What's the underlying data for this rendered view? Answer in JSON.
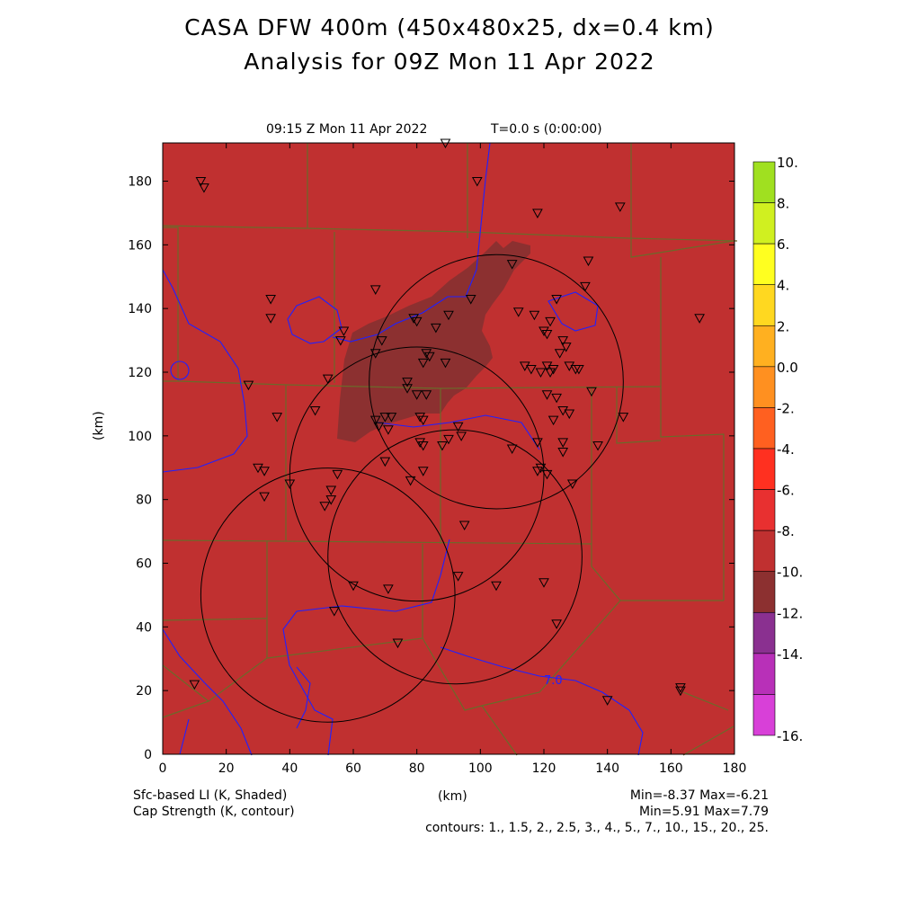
{
  "header": {
    "title_line1": "CASA DFW 400m (450x480x25, dx=0.4 km)",
    "title_line2": "Analysis for 09Z Mon 11 Apr 2022",
    "valid_time": "09:15 Z Mon 11 Apr 2022",
    "model_time": "T=0.0 s (0:00:00)"
  },
  "axes": {
    "x_ticks": [
      "0",
      "20",
      "40",
      "60",
      "80",
      "100",
      "120",
      "140",
      "160",
      "180"
    ],
    "y_ticks": [
      "0",
      "20",
      "40",
      "60",
      "80",
      "100",
      "120",
      "140",
      "160",
      "180"
    ],
    "x_unit": "(km)",
    "y_unit": "(km)"
  },
  "colorbar": {
    "labels": [
      "10.",
      "8.",
      "6.",
      "4.",
      "2.",
      "0.0",
      "-2.",
      "-4.",
      "-6.",
      "-8.",
      "-10.",
      "-12.",
      "-14.",
      "-16."
    ],
    "colors": [
      "#a0e020",
      "#d0f020",
      "#ffff20",
      "#ffd820",
      "#ffb020",
      "#ff9020",
      "#ff6020",
      "#ff3020",
      "#e83030",
      "#c03030",
      "#8c3030",
      "#8a3090",
      "#b830b8",
      "#d840d8"
    ]
  },
  "field": {
    "base_color": "#c03030",
    "low_region_color": "#8c3030",
    "contour_label": "7.0"
  },
  "footer": {
    "shaded_field": "Sfc-based LI (K, Shaded)",
    "contour_field": "Cap Strength (K, contour)",
    "shaded_range": "Min=-8.37 Max=-6.21",
    "contour_range": "Min=5.91 Max=7.79",
    "contours": "contours: 1., 1.5, 2., 2.5, 3., 4., 5., 7., 10., 15., 20., 25."
  },
  "radars": [
    {
      "cx_km": 52,
      "cy_km": 50,
      "r_km": 40
    },
    {
      "cx_km": 80,
      "cy_km": 88,
      "r_km": 40
    },
    {
      "cx_km": 92,
      "cy_km": 62,
      "r_km": 40
    },
    {
      "cx_km": 105,
      "cy_km": 117,
      "r_km": 40
    }
  ],
  "stations_km": [
    [
      12,
      180
    ],
    [
      13,
      178
    ],
    [
      89,
      192
    ],
    [
      99,
      180
    ],
    [
      118,
      170
    ],
    [
      144,
      172
    ],
    [
      134,
      155
    ],
    [
      110,
      154
    ],
    [
      67,
      146
    ],
    [
      133,
      147
    ],
    [
      34,
      143
    ],
    [
      34,
      137
    ],
    [
      169,
      137
    ],
    [
      57,
      133
    ],
    [
      56,
      130
    ],
    [
      79,
      137
    ],
    [
      80,
      136
    ],
    [
      86,
      134
    ],
    [
      90,
      138
    ],
    [
      97,
      143
    ],
    [
      112,
      139
    ],
    [
      117,
      138
    ],
    [
      120,
      133
    ],
    [
      121,
      132
    ],
    [
      122,
      136
    ],
    [
      124,
      143
    ],
    [
      126,
      130
    ],
    [
      127,
      128
    ],
    [
      125,
      126
    ],
    [
      128,
      122
    ],
    [
      69,
      130
    ],
    [
      67,
      126
    ],
    [
      77,
      117
    ],
    [
      83,
      126
    ],
    [
      82,
      123
    ],
    [
      84,
      125
    ],
    [
      89,
      123
    ],
    [
      114,
      122
    ],
    [
      116,
      121
    ],
    [
      119,
      120
    ],
    [
      121,
      122
    ],
    [
      123,
      121
    ],
    [
      122,
      120
    ],
    [
      130,
      121
    ],
    [
      131,
      121
    ],
    [
      27,
      116
    ],
    [
      52,
      118
    ],
    [
      77,
      115
    ],
    [
      80,
      113
    ],
    [
      83,
      113
    ],
    [
      121,
      113
    ],
    [
      124,
      112
    ],
    [
      126,
      108
    ],
    [
      123,
      105
    ],
    [
      128,
      107
    ],
    [
      135,
      114
    ],
    [
      36,
      106
    ],
    [
      48,
      108
    ],
    [
      67,
      105
    ],
    [
      68,
      103
    ],
    [
      70,
      106
    ],
    [
      72,
      106
    ],
    [
      71,
      102
    ],
    [
      81,
      106
    ],
    [
      82,
      105
    ],
    [
      93,
      103
    ],
    [
      94,
      100
    ],
    [
      90,
      99
    ],
    [
      81,
      98
    ],
    [
      82,
      97
    ],
    [
      88,
      97
    ],
    [
      110,
      96
    ],
    [
      118,
      98
    ],
    [
      126,
      98
    ],
    [
      126,
      95
    ],
    [
      137,
      97
    ],
    [
      145,
      106
    ],
    [
      30,
      90
    ],
    [
      32,
      89
    ],
    [
      55,
      88
    ],
    [
      70,
      92
    ],
    [
      78,
      86
    ],
    [
      82,
      89
    ],
    [
      119,
      90
    ],
    [
      118,
      89
    ],
    [
      121,
      88
    ],
    [
      129,
      85
    ],
    [
      32,
      81
    ],
    [
      40,
      85
    ],
    [
      53,
      83
    ],
    [
      51,
      78
    ],
    [
      53,
      80
    ],
    [
      95,
      72
    ],
    [
      93,
      56
    ],
    [
      105,
      53
    ],
    [
      120,
      54
    ],
    [
      60,
      53
    ],
    [
      71,
      52
    ],
    [
      54,
      45
    ],
    [
      124,
      41
    ],
    [
      74,
      35
    ],
    [
      10,
      22
    ],
    [
      140,
      17
    ],
    [
      163,
      21
    ],
    [
      163,
      20
    ]
  ]
}
